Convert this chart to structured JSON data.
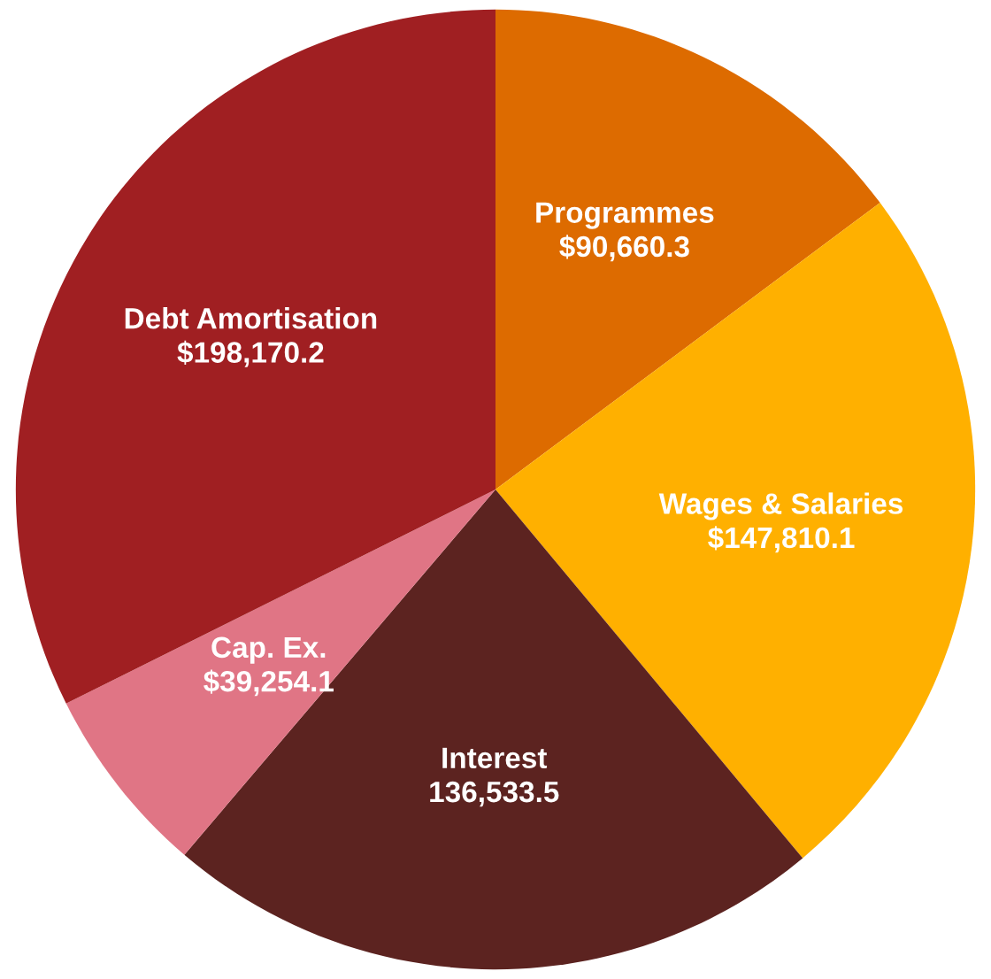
{
  "chart_data": {
    "type": "pie",
    "categories": [
      "Programmes",
      "Wages & Salaries",
      "Interest",
      "Cap. Ex.",
      "Debt Amortisation"
    ],
    "values": [
      90660.3,
      147810.1,
      136533.5,
      39254.1,
      198170.2
    ],
    "value_labels": [
      "$90,660.3",
      "$147,810.1",
      "136,533.5",
      "$39,254.1",
      "$198,170.2"
    ],
    "colors": [
      "#dd6b00",
      "#ffb000",
      "#5c2320",
      "#e07585",
      "#a01f22"
    ],
    "legend": false
  }
}
